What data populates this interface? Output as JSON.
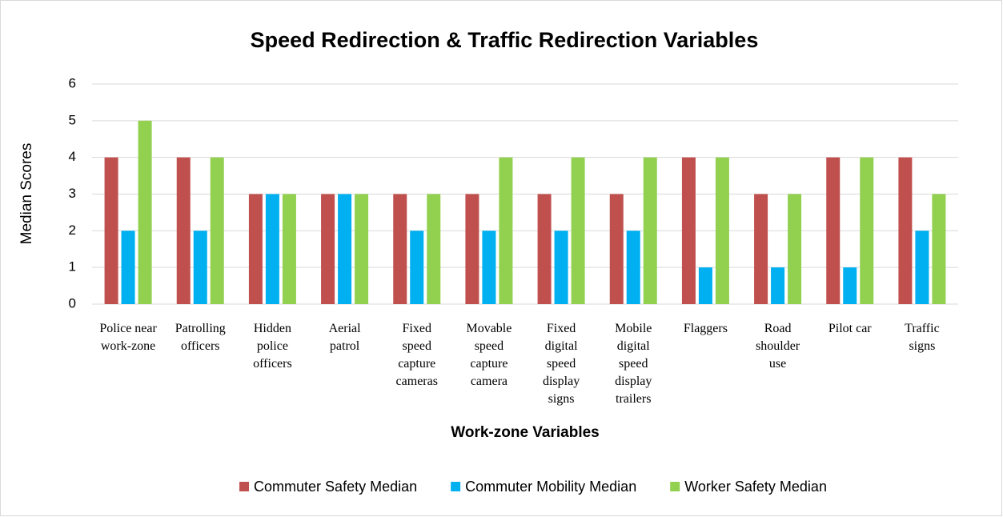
{
  "chart_data": {
    "type": "bar",
    "title": "Speed Redirection & Traffic Redirection Variables",
    "x_label": "Work-zone Variables",
    "y_label": "Median Scores",
    "categories": [
      "Police near work-zone",
      "Patrolling officers",
      "Hidden police officers",
      "Aerial patrol",
      "Fixed speed capture cameras",
      "Movable speed capture camera",
      "Fixed digital speed display signs",
      "Mobile digital speed display trailers",
      "Flaggers",
      "Road shoulder use",
      "Pilot car",
      "Traffic signs"
    ],
    "series": [
      {
        "name": "Commuter Safety Median",
        "color": "#c0504d",
        "values": [
          4,
          4,
          3,
          3,
          3,
          3,
          3,
          3,
          4,
          3,
          4,
          4
        ]
      },
      {
        "name": "Commuter Mobility Median",
        "color": "#00b0f0",
        "values": [
          2,
          2,
          3,
          3,
          2,
          2,
          2,
          2,
          1,
          1,
          1,
          2
        ]
      },
      {
        "name": "Worker Safety Median",
        "color": "#92d050",
        "values": [
          5,
          4,
          3,
          3,
          3,
          4,
          4,
          4,
          4,
          3,
          4,
          3
        ]
      }
    ],
    "ylim": [
      0,
      6
    ],
    "yticks": [
      0,
      1,
      2,
      3,
      4,
      5,
      6
    ],
    "grid": true,
    "legend": "bottom"
  }
}
